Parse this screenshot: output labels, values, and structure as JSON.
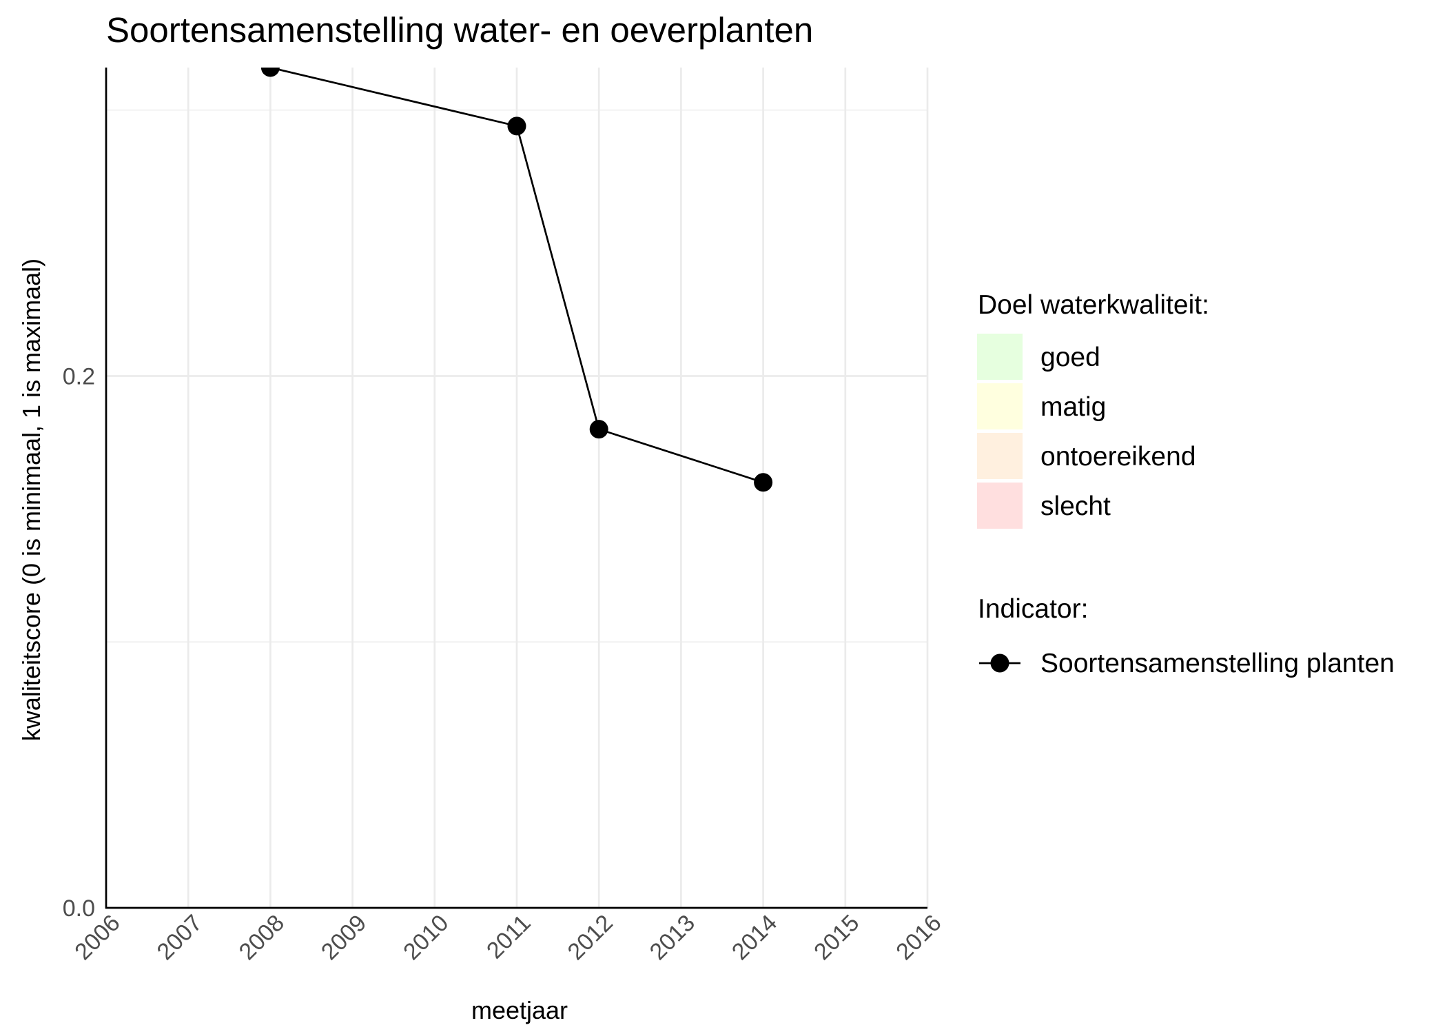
{
  "chart_data": {
    "type": "line",
    "title": "Soortensamenstelling water- en oeverplanten",
    "xlabel": "meetjaar",
    "ylabel": "kwaliteitscore (0 is minimaal, 1 is maximaal)",
    "xlim": [
      2006,
      2016
    ],
    "ylim": [
      0,
      0.316
    ],
    "x_ticks": [
      "2006",
      "2007",
      "2008",
      "2009",
      "2010",
      "2011",
      "2012",
      "2013",
      "2014",
      "2015",
      "2016"
    ],
    "y_ticks": [
      {
        "value": 0.0,
        "label": "0.0"
      },
      {
        "value": 0.2,
        "label": "0.2"
      }
    ],
    "y_minor_grid": [
      0.1,
      0.3
    ],
    "grid": true,
    "series": [
      {
        "name": "Soortensamenstelling planten",
        "color": "#000000",
        "x": [
          2008,
          2011,
          2012,
          2014
        ],
        "y": [
          0.316,
          0.294,
          0.18,
          0.16
        ]
      }
    ],
    "legend": {
      "placement": "right",
      "fill_title": "Doel waterkwaliteit:",
      "fill_items": [
        {
          "label": "goed",
          "color": "#e6ffdf"
        },
        {
          "label": "matig",
          "color": "#ffffdf"
        },
        {
          "label": "ontoereikend",
          "color": "#fff0df"
        },
        {
          "label": "slecht",
          "color": "#ffdfdf"
        }
      ],
      "indicator_title": "Indicator:",
      "indicator_items": [
        {
          "label": "Soortensamenstelling planten",
          "color": "#000000"
        }
      ]
    }
  }
}
